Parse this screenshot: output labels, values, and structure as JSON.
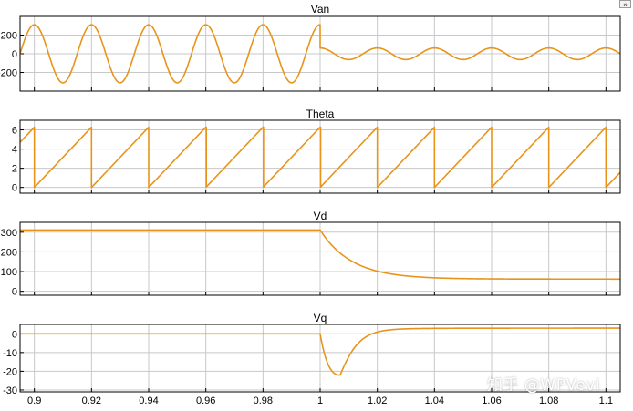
{
  "window": {
    "dock_button_glyph": "⌅",
    "watermark": "知乎 @WPVevi"
  },
  "style": {
    "trace_color": "#e8941a",
    "grid_color": "#c8c8c8",
    "axes_color": "#000000"
  },
  "chart_data": [
    {
      "type": "line",
      "title": "Van",
      "xlim": [
        0.895,
        1.105
      ],
      "ylim": [
        -400,
        400
      ],
      "yticks": [
        -200,
        0,
        200
      ],
      "ytick_labels": [
        "-200",
        "0",
        "200"
      ],
      "xticks": [
        0.9,
        0.92,
        0.94,
        0.96,
        0.98,
        1.0,
        1.02,
        1.04,
        1.06,
        1.08,
        1.1
      ],
      "grid": true,
      "series": [
        {
          "segments": [
            {
              "x_start": 0.893,
              "x_end": 1.0,
              "kind": "sine",
              "amplitude": 311,
              "frequency_hz": 50,
              "phase_deg": -90
            },
            {
              "x_start": 1.0,
              "x_end": 1.105,
              "kind": "sine",
              "amplitude": 62,
              "frequency_hz": 50,
              "phase_deg": -90
            }
          ]
        }
      ]
    },
    {
      "type": "line",
      "title": "Theta",
      "xlim": [
        0.895,
        1.105
      ],
      "ylim": [
        -0.6,
        7
      ],
      "yticks": [
        0,
        2,
        4,
        6
      ],
      "ytick_labels": [
        "0",
        "2",
        "4",
        "6"
      ],
      "xticks": [
        0.9,
        0.92,
        0.94,
        0.96,
        0.98,
        1.0,
        1.02,
        1.04,
        1.06,
        1.08,
        1.1
      ],
      "grid": true,
      "series": [
        {
          "segments": [
            {
              "x_start": 0.893,
              "x_end": 1.105,
              "kind": "sawtooth",
              "min": 0,
              "max": 6.283,
              "frequency_hz": 50,
              "reset_at": 0.9
            }
          ]
        }
      ]
    },
    {
      "type": "line",
      "title": "Vd",
      "xlim": [
        0.895,
        1.105
      ],
      "ylim": [
        -20,
        350
      ],
      "yticks": [
        0,
        100,
        200,
        300
      ],
      "ytick_labels": [
        "0",
        "100",
        "200",
        "300"
      ],
      "xticks": [
        0.9,
        0.92,
        0.94,
        0.96,
        0.98,
        1.0,
        1.02,
        1.04,
        1.06,
        1.08,
        1.1
      ],
      "grid": true,
      "series": [
        {
          "segments": [
            {
              "x_start": 0.893,
              "x_end": 1.0,
              "kind": "constant",
              "value": 311
            },
            {
              "x_start": 1.0,
              "x_end": 1.105,
              "kind": "first_order",
              "from": 311,
              "to": 62,
              "tau_s": 0.011
            }
          ]
        }
      ]
    },
    {
      "type": "line",
      "title": "Vq",
      "xlim": [
        0.895,
        1.105
      ],
      "ylim": [
        -31,
        5
      ],
      "yticks": [
        -30,
        -20,
        -10,
        0
      ],
      "ytick_labels": [
        "-30",
        "-20",
        "-10",
        "0"
      ],
      "xticks": [
        0.9,
        0.92,
        0.94,
        0.96,
        0.98,
        1.0,
        1.02,
        1.04,
        1.06,
        1.08,
        1.1
      ],
      "xtick_labels": [
        "0.9",
        "0.92",
        "0.94",
        "0.96",
        "0.98",
        "1",
        "1.02",
        "1.04",
        "1.06",
        "1.08",
        "1.1"
      ],
      "grid": true,
      "series": [
        {
          "segments": [
            {
              "x_start": 0.893,
              "x_end": 1.0,
              "kind": "constant",
              "value": 0
            },
            {
              "x_start": 1.0,
              "x_end": 1.105,
              "kind": "dip_recover",
              "min": -22,
              "min_at": 1.007,
              "final": 3,
              "tau_s": 0.012
            }
          ]
        }
      ]
    }
  ]
}
